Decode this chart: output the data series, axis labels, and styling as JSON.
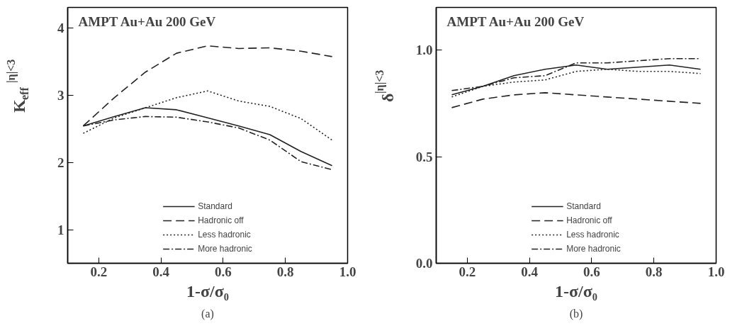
{
  "chart_data": [
    {
      "type": "line",
      "title": "AMPT Au+Au 200 GeV",
      "xlabel": "1-σ/σ₀",
      "ylabel": "K$_{eff}$$^{|η|<3}$",
      "annotations": [
        "(a)"
      ],
      "x": [
        0.15,
        0.25,
        0.35,
        0.45,
        0.55,
        0.65,
        0.75,
        0.85,
        0.95
      ],
      "series": [
        {
          "name": "Standard",
          "color": "#222222",
          "line_style": "solid",
          "values": [
            2.54,
            2.68,
            2.81,
            2.78,
            2.66,
            2.54,
            2.41,
            2.16,
            1.95
          ]
        },
        {
          "name": "Hadronic off",
          "color": "#222222",
          "line_style": "dashed",
          "values": [
            2.54,
            2.96,
            3.34,
            3.62,
            3.73,
            3.69,
            3.7,
            3.65,
            3.57
          ]
        },
        {
          "name": "Less hadronic",
          "color": "#222222",
          "line_style": "dotted",
          "values": [
            2.43,
            2.66,
            2.81,
            2.96,
            3.06,
            2.91,
            2.83,
            2.65,
            2.33
          ]
        },
        {
          "name": "More hadronic",
          "color": "#222222",
          "line_style": "dashdot",
          "values": [
            2.54,
            2.63,
            2.68,
            2.67,
            2.6,
            2.51,
            2.33,
            2.01,
            1.89
          ]
        }
      ],
      "xlim": [
        0.1,
        1.0
      ],
      "ylim": [
        0.5,
        4.3
      ],
      "xticks": [
        0.2,
        0.4,
        0.6,
        0.8,
        {
          "value": 1.0,
          "label": "1.0"
        }
      ],
      "yticks": [
        1,
        2,
        3,
        4
      ],
      "grid": false,
      "legend": "bottom",
      "marker": "none"
    },
    {
      "type": "line",
      "title": "AMPT Au+Au 200 GeV",
      "xlabel": "1-σ/σ₀",
      "ylabel": "δ$^{|η|<3}$",
      "annotations": [
        "(b)"
      ],
      "x": [
        0.15,
        0.25,
        0.35,
        0.45,
        0.55,
        0.65,
        0.75,
        0.85,
        0.95
      ],
      "series": [
        {
          "name": "Standard",
          "color": "#222222",
          "line_style": "solid",
          "values": [
            0.79,
            0.83,
            0.88,
            0.91,
            0.93,
            0.91,
            0.92,
            0.93,
            0.91
          ]
        },
        {
          "name": "Hadronic off",
          "color": "#222222",
          "line_style": "dashed",
          "values": [
            0.73,
            0.77,
            0.79,
            0.8,
            0.79,
            0.78,
            0.77,
            0.76,
            0.75
          ]
        },
        {
          "name": "Less hadronic",
          "color": "#222222",
          "line_style": "dotted",
          "values": [
            0.78,
            0.83,
            0.85,
            0.86,
            0.9,
            0.91,
            0.9,
            0.9,
            0.89
          ]
        },
        {
          "name": "More hadronic",
          "color": "#222222",
          "line_style": "dashdot",
          "values": [
            0.81,
            0.83,
            0.87,
            0.88,
            0.94,
            0.94,
            0.95,
            0.96,
            0.96
          ]
        }
      ],
      "xlim": [
        0.1,
        1.0
      ],
      "ylim": [
        0.0,
        1.2
      ],
      "xticks": [
        0.2,
        0.4,
        0.6,
        0.8,
        {
          "value": 1.0,
          "label": "1.0"
        }
      ],
      "yticks": [
        {
          "value": 0.0,
          "label": "0.0"
        },
        0.5,
        {
          "value": 1.0,
          "label": "1.0"
        }
      ],
      "grid": false,
      "legend": "bottom",
      "marker": "none"
    }
  ]
}
